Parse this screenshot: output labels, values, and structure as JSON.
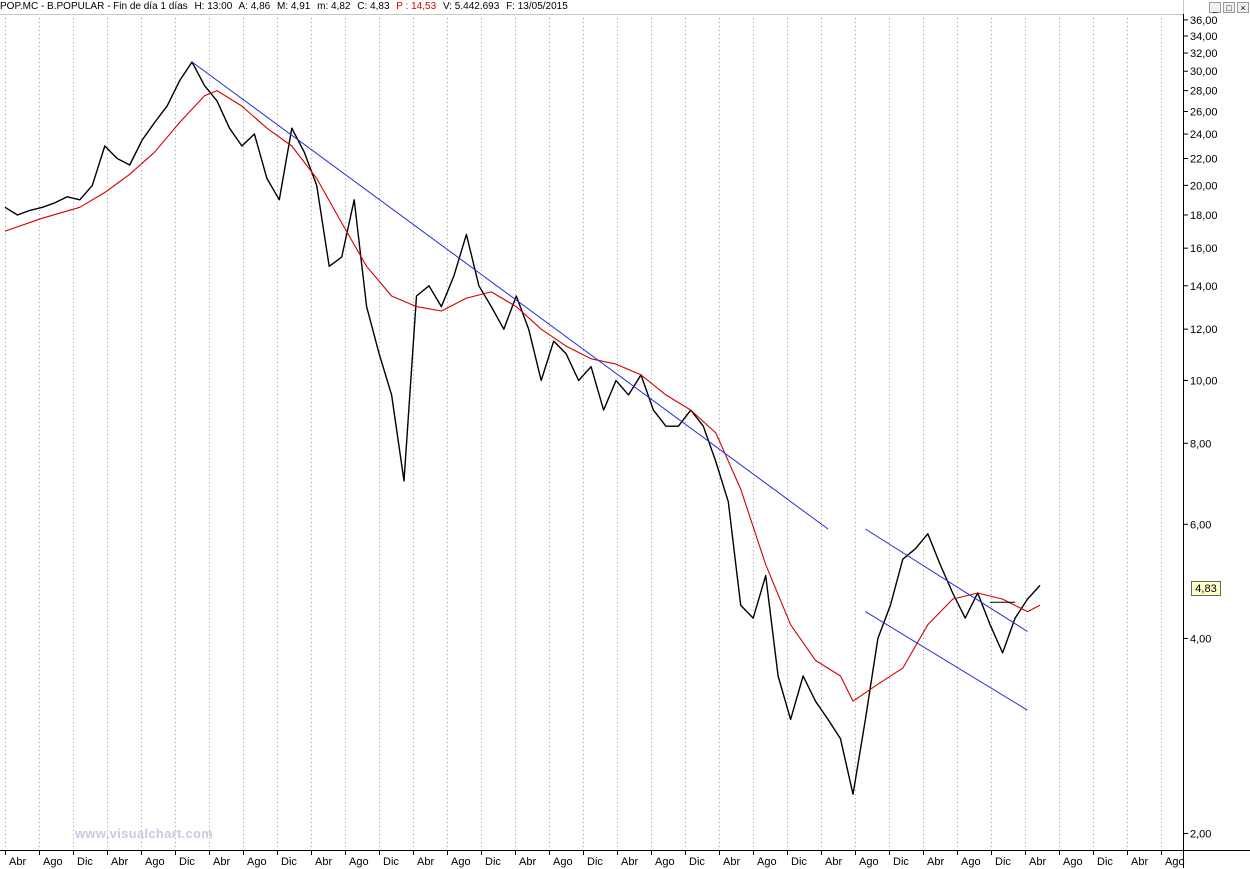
{
  "header": {
    "ticker": "POP.MC - B.POPULAR - Fin de día 1 días",
    "h": "H: 13:00",
    "a": "A: 4,86",
    "m_max": "M: 4,91",
    "m_min": "m: 4,82",
    "c": "C: 4,83",
    "p": "P : 14,53",
    "v": "V: 5.442.693",
    "f": "F: 13/05/2015"
  },
  "window_buttons": [
    "_",
    "□",
    "×"
  ],
  "watermark": "www.visualchart.com",
  "last_price_label": "4,83",
  "chart_data": {
    "type": "line",
    "scale": "log",
    "ylim": [
      1.9,
      36.5
    ],
    "yticks": [
      2,
      4,
      6,
      8,
      10,
      12,
      14,
      16,
      18,
      20,
      22,
      24,
      26,
      28,
      30,
      32,
      34,
      36
    ],
    "ytick_labels": [
      "2,00",
      "4,00",
      "6,00",
      "8,00",
      "10,00",
      "12,00",
      "14,00",
      "16,00",
      "18,00",
      "20,00",
      "22,00",
      "24,00",
      "26,00",
      "28,00",
      "30,00",
      "32,00",
      "34,00",
      "36,00"
    ],
    "xtick_labels": [
      "Abr",
      "Ago",
      "Dic",
      "Abr",
      "Ago",
      "Dic",
      "Abr",
      "Ago",
      "Dic",
      "Abr",
      "Ago",
      "Dic",
      "Abr",
      "Ago",
      "Dic",
      "Abr",
      "Ago",
      "Dic",
      "Abr",
      "Ago",
      "Dic",
      "Abr",
      "Ago",
      "Dic",
      "Abr",
      "Ago",
      "Dic",
      "Abr",
      "Ago",
      "Dic",
      "Abr",
      "Ago",
      "Dic",
      "Abr",
      "Ago"
    ],
    "grid": "vertical dotted",
    "colors": {
      "price": "#000000",
      "moving_average": "#d40000",
      "trendlines": "#1f2fd6",
      "support": "#000000"
    },
    "series": [
      {
        "kind": "price",
        "points": [
          [
            0,
            18.5
          ],
          [
            1,
            18.0
          ],
          [
            2,
            18.3
          ],
          [
            3,
            18.5
          ],
          [
            4,
            18.8
          ],
          [
            5,
            19.2
          ],
          [
            6,
            19.0
          ],
          [
            7,
            20.0
          ],
          [
            8,
            23.0
          ],
          [
            9,
            22.0
          ],
          [
            10,
            21.5
          ],
          [
            11,
            23.5
          ],
          [
            12,
            25.0
          ],
          [
            13,
            26.5
          ],
          [
            14,
            29.0
          ],
          [
            15,
            31.0
          ],
          [
            16,
            28.5
          ],
          [
            17,
            27.0
          ],
          [
            18,
            24.5
          ],
          [
            19,
            23.0
          ],
          [
            20,
            24.0
          ],
          [
            21,
            20.5
          ],
          [
            22,
            19.0
          ],
          [
            23,
            24.5
          ],
          [
            24,
            22.5
          ],
          [
            25,
            20.0
          ],
          [
            26,
            15.0
          ],
          [
            27,
            15.5
          ],
          [
            28,
            19.0
          ],
          [
            29,
            13.0
          ],
          [
            30,
            11.0
          ],
          [
            31,
            9.5
          ],
          [
            32,
            7.0
          ],
          [
            33,
            13.5
          ],
          [
            34,
            14.0
          ],
          [
            35,
            13.0
          ],
          [
            36,
            14.5
          ],
          [
            37,
            16.8
          ],
          [
            38,
            14.0
          ],
          [
            39,
            13.0
          ],
          [
            40,
            12.0
          ],
          [
            41,
            13.5
          ],
          [
            42,
            12.0
          ],
          [
            43,
            10.0
          ],
          [
            44,
            11.5
          ],
          [
            45,
            11.0
          ],
          [
            46,
            10.0
          ],
          [
            47,
            10.5
          ],
          [
            48,
            9.0
          ],
          [
            49,
            10.0
          ],
          [
            50,
            9.5
          ],
          [
            51,
            10.2
          ],
          [
            52,
            9.0
          ],
          [
            53,
            8.5
          ],
          [
            54,
            8.5
          ],
          [
            55,
            9.0
          ],
          [
            56,
            8.5
          ],
          [
            57,
            7.5
          ],
          [
            58,
            6.5
          ],
          [
            59,
            4.5
          ],
          [
            60,
            4.3
          ],
          [
            61,
            5.0
          ],
          [
            62,
            3.5
          ],
          [
            63,
            3.0
          ],
          [
            64,
            3.5
          ],
          [
            65,
            3.2
          ],
          [
            66,
            3.0
          ],
          [
            67,
            2.8
          ],
          [
            68,
            2.3
          ],
          [
            69,
            3.0
          ],
          [
            70,
            4.0
          ],
          [
            71,
            4.5
          ],
          [
            72,
            5.3
          ],
          [
            73,
            5.5
          ],
          [
            74,
            5.8
          ],
          [
            75,
            5.2
          ],
          [
            76,
            4.7
          ],
          [
            77,
            4.3
          ],
          [
            78,
            4.7
          ],
          [
            79,
            4.2
          ],
          [
            80,
            3.8
          ],
          [
            81,
            4.3
          ],
          [
            82,
            4.6
          ],
          [
            83,
            4.83
          ]
        ]
      },
      {
        "kind": "moving_average",
        "points": [
          [
            0,
            17.0
          ],
          [
            3,
            17.8
          ],
          [
            6,
            18.5
          ],
          [
            8,
            19.5
          ],
          [
            10,
            20.8
          ],
          [
            12,
            22.5
          ],
          [
            14,
            25.0
          ],
          [
            16,
            27.5
          ],
          [
            17,
            28.0
          ],
          [
            19,
            26.5
          ],
          [
            21,
            24.5
          ],
          [
            23,
            23.0
          ],
          [
            25,
            20.5
          ],
          [
            27,
            17.5
          ],
          [
            29,
            15.0
          ],
          [
            31,
            13.5
          ],
          [
            33,
            13.0
          ],
          [
            35,
            12.8
          ],
          [
            37,
            13.4
          ],
          [
            39,
            13.7
          ],
          [
            41,
            13.0
          ],
          [
            43,
            12.0
          ],
          [
            45,
            11.3
          ],
          [
            47,
            10.8
          ],
          [
            49,
            10.6
          ],
          [
            51,
            10.2
          ],
          [
            53,
            9.5
          ],
          [
            55,
            9.0
          ],
          [
            57,
            8.3
          ],
          [
            59,
            6.8
          ],
          [
            61,
            5.2
          ],
          [
            63,
            4.2
          ],
          [
            65,
            3.7
          ],
          [
            67,
            3.5
          ],
          [
            68,
            3.2
          ],
          [
            70,
            3.4
          ],
          [
            72,
            3.6
          ],
          [
            74,
            4.2
          ],
          [
            76,
            4.6
          ],
          [
            78,
            4.7
          ],
          [
            80,
            4.6
          ],
          [
            82,
            4.4
          ],
          [
            83,
            4.5
          ]
        ]
      },
      {
        "kind": "trendline",
        "points": [
          [
            15,
            31.0
          ],
          [
            66,
            5.9
          ]
        ]
      },
      {
        "kind": "trendline",
        "points": [
          [
            69,
            5.9
          ],
          [
            82,
            4.1
          ]
        ]
      },
      {
        "kind": "trendline",
        "points": [
          [
            69,
            4.4
          ],
          [
            82,
            3.1
          ]
        ]
      },
      {
        "kind": "support",
        "points": [
          [
            79,
            4.55
          ],
          [
            81,
            4.55
          ]
        ]
      }
    ]
  }
}
